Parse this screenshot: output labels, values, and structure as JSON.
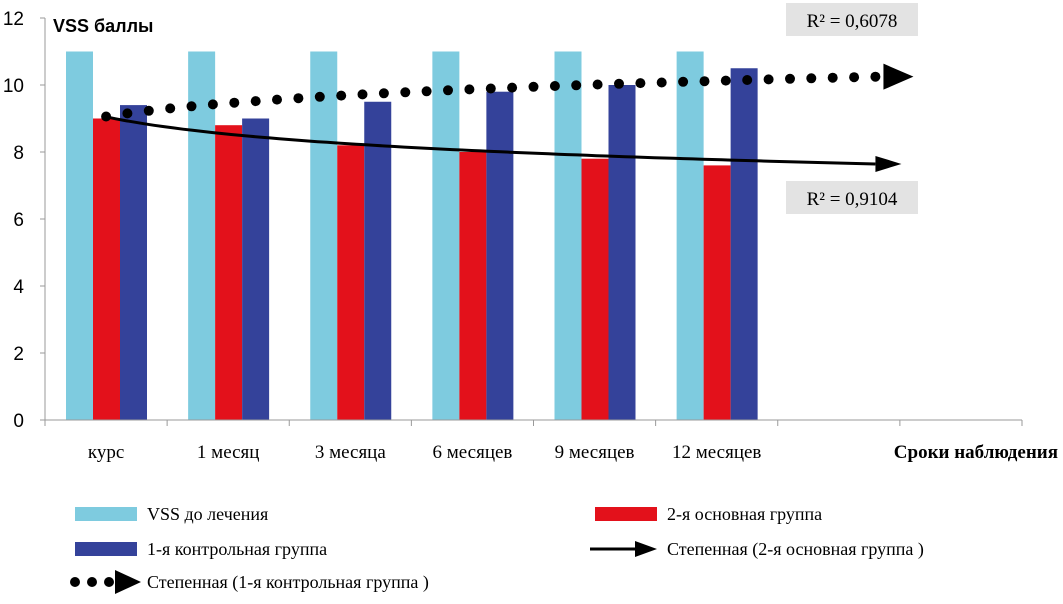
{
  "chart_data": {
    "type": "bar",
    "ylabel": "VSS баллы",
    "xlabel": "Сроки наблюдения",
    "ylim": [
      0,
      12
    ],
    "yticks": [
      0,
      2,
      4,
      6,
      8,
      10,
      12
    ],
    "grid": false,
    "legend_position": "bottom",
    "categories": [
      "курс",
      "1 месяц",
      "3 месяца",
      "6 месяцев",
      "9 месяцев",
      "12 месяцев"
    ],
    "extra_category_slots": 2,
    "series": [
      {
        "name": "VSS до лечения",
        "color": "#7ecbdf",
        "values": [
          11,
          11,
          11,
          11,
          11,
          11
        ]
      },
      {
        "name": "2-я основная группа",
        "color": "#e3111b",
        "values": [
          9.0,
          8.8,
          8.2,
          8.0,
          7.8,
          7.6
        ]
      },
      {
        "name": "1-я контрольная группа",
        "color": "#34429a",
        "values": [
          9.4,
          9.0,
          9.5,
          9.8,
          10.0,
          10.5
        ]
      }
    ],
    "trendlines": [
      {
        "name": "Степенная (2-я основная группа )",
        "style": "solid",
        "color": "#000000",
        "model": "power",
        "a": 9.05,
        "b": -0.085,
        "r2_label": "R² = 0,9104",
        "r2_box_position": "right-below"
      },
      {
        "name": "Степенная (1-я контрольная группа )",
        "style": "dotted",
        "color": "#000000",
        "model": "power",
        "a": 9.06,
        "b": 0.062,
        "r2_label": "R² = 0,6078",
        "r2_box_position": "top-right"
      }
    ],
    "legend": [
      {
        "label": "VSS до лечения",
        "kind": "bar",
        "color": "#7ecbdf"
      },
      {
        "label": "2-я основная группа",
        "kind": "bar",
        "color": "#e3111b"
      },
      {
        "label": "1-я контрольная группа",
        "kind": "bar",
        "color": "#34429a"
      },
      {
        "label": "Степенная (2-я основная группа )",
        "kind": "solid-arrow",
        "color": "#000000"
      },
      {
        "label": "Степенная (1-я контрольная группа )",
        "kind": "dotted-arrow",
        "color": "#000000"
      }
    ]
  }
}
